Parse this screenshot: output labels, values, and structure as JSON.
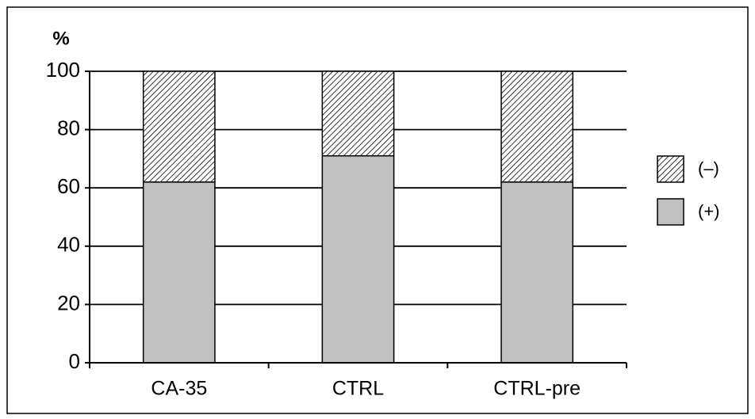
{
  "chart_data": {
    "type": "stacked_bar",
    "ylabel": "%",
    "categories": [
      "CA-35",
      "CTRL",
      "CTRL-pre"
    ],
    "series": [
      {
        "name": "(+)",
        "color": "#c0c0c0",
        "values": [
          62,
          71,
          62
        ]
      },
      {
        "name": "(–)",
        "color": "#000000",
        "pattern": "hatch",
        "values": [
          38,
          29,
          38
        ]
      }
    ],
    "ylim": [
      0,
      100
    ],
    "yticks": [
      0,
      20,
      40,
      60,
      80,
      100
    ],
    "grid": true,
    "legend": "right"
  }
}
